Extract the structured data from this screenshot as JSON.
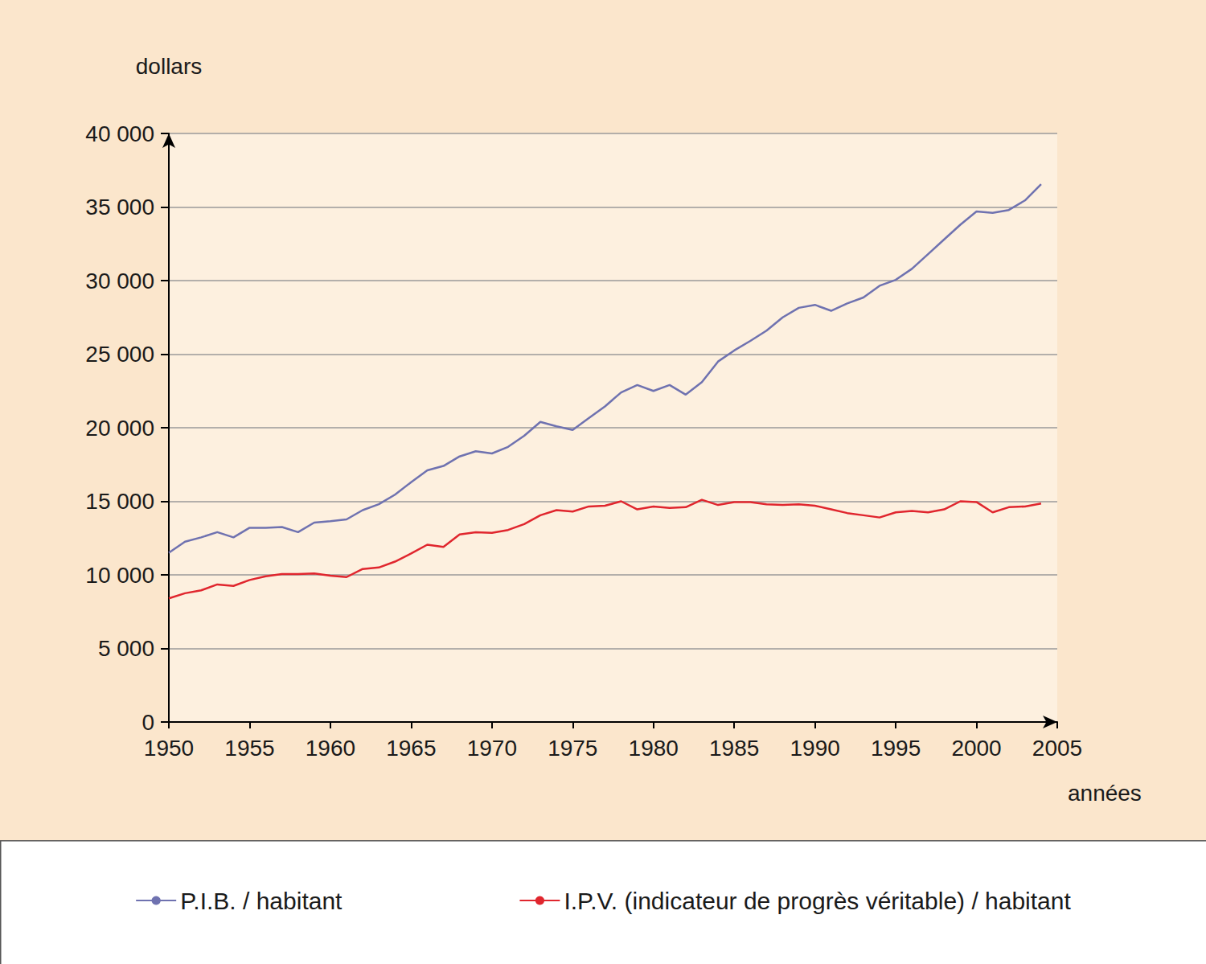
{
  "chart_data": {
    "type": "line",
    "y_label": "dollars",
    "x_label": "années",
    "x": [
      1950,
      1951,
      1952,
      1953,
      1954,
      1955,
      1956,
      1957,
      1958,
      1959,
      1960,
      1961,
      1962,
      1963,
      1964,
      1965,
      1966,
      1967,
      1968,
      1969,
      1970,
      1971,
      1972,
      1973,
      1974,
      1975,
      1976,
      1977,
      1978,
      1979,
      1980,
      1981,
      1982,
      1983,
      1984,
      1985,
      1986,
      1987,
      1988,
      1989,
      1990,
      1991,
      1992,
      1993,
      1994,
      1995,
      1996,
      1997,
      1998,
      1999,
      2000,
      2001,
      2002,
      2003,
      2004
    ],
    "series": [
      {
        "name": "P.I.B. / habitant",
        "color": "#6f72b0",
        "values": [
          11500,
          12250,
          12550,
          12900,
          12550,
          13200,
          13200,
          13250,
          12900,
          13550,
          13650,
          13770,
          14400,
          14800,
          15450,
          16300,
          17100,
          17400,
          18050,
          18400,
          18250,
          18700,
          19450,
          20400,
          20100,
          19850,
          20650,
          21450,
          22400,
          22900,
          22500,
          22900,
          22250,
          23100,
          24500,
          25250,
          25900,
          26600,
          27500,
          28150,
          28350,
          27950,
          28450,
          28850,
          29650,
          30050,
          30800,
          31800,
          32800,
          33800,
          34700,
          34600,
          34800,
          35450,
          36550
        ]
      },
      {
        "name": "I.P.V. (indicateur de progrès véritable) / habitant",
        "color": "#e0262e",
        "values": [
          8400,
          8750,
          8950,
          9350,
          9250,
          9650,
          9900,
          10050,
          10050,
          10100,
          9950,
          9850,
          10400,
          10500,
          10900,
          11450,
          12050,
          11900,
          12750,
          12900,
          12850,
          13050,
          13450,
          14050,
          14400,
          14300,
          14650,
          14700,
          15000,
          14450,
          14650,
          14550,
          14600,
          15100,
          14750,
          14950,
          14950,
          14800,
          14750,
          14800,
          14700,
          14450,
          14200,
          14050,
          13900,
          14250,
          14350,
          14250,
          14450,
          15000,
          14950,
          14250,
          14600,
          14650,
          14850
        ]
      }
    ],
    "xlim": [
      1950,
      2005
    ],
    "xticks": [
      1950,
      1955,
      1960,
      1965,
      1970,
      1975,
      1980,
      1985,
      1990,
      1995,
      2000,
      2005
    ],
    "ylim": [
      0,
      40000
    ],
    "yticks": [
      0,
      {
        "value": 5000,
        "label": "5 000"
      },
      {
        "value": 10000,
        "label": "10 000"
      },
      {
        "value": 15000,
        "label": "15 000"
      },
      {
        "value": 20000,
        "label": "20 000"
      },
      {
        "value": 25000,
        "label": "25 000"
      },
      {
        "value": 30000,
        "label": "30 000"
      },
      {
        "value": 35000,
        "label": "35 000"
      },
      {
        "value": 40000,
        "label": "40 000"
      }
    ],
    "grid": true,
    "legend": "bottom"
  }
}
